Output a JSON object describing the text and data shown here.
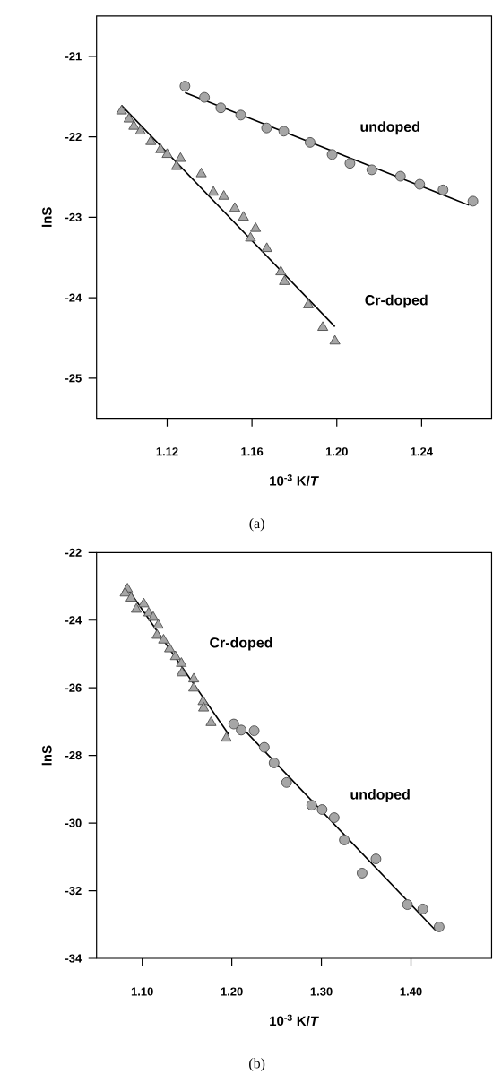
{
  "chart_data": [
    {
      "type": "scatter",
      "xlabel": "10$^{-3}$ K/*T*",
      "ylabel": "lnS",
      "annotations": [
        "(a)"
      ],
      "xlim": [
        1.0867,
        1.273
      ],
      "ylim": [
        -25.5,
        -20.5
      ],
      "xticks": [
        1.12,
        1.16,
        {
          "value": 1.2,
          "label": "1.20"
        },
        1.24
      ],
      "yticks": [
        -25,
        -24,
        -23,
        -22,
        -21
      ],
      "series": [
        {
          "name": "undoped",
          "marker": "circle",
          "color": "#a6a6a6",
          "x": [
            1.1284,
            1.1376,
            1.1453,
            1.1547,
            1.1669,
            1.175,
            1.1874,
            1.1978,
            1.2062,
            1.2165,
            1.23,
            1.2391,
            1.2501,
            1.2642
          ],
          "values": [
            -21.37,
            -21.51,
            -21.64,
            -21.73,
            -21.89,
            -21.93,
            -22.07,
            -22.22,
            -22.33,
            -22.41,
            -22.49,
            -22.59,
            -22.66,
            -22.8
          ]
        },
        {
          "type": "line",
          "color": "#000000",
          "x": [
            1.1284,
            1.2624
          ],
          "values": [
            -21.45,
            -22.85
          ]
        },
        {
          "name": "Cr-doped",
          "marker": "triangle",
          "color": "#a6a6a6",
          "x": [
            1.0985,
            1.102,
            1.1043,
            1.1074,
            1.1123,
            1.1169,
            1.12,
            1.1263,
            1.1244,
            1.1361,
            1.1418,
            1.1467,
            1.1519,
            1.156,
            1.1617,
            1.1593,
            1.167,
            1.1736,
            1.1753,
            1.1866,
            1.1934,
            1.1991
          ],
          "values": [
            -21.68,
            -21.78,
            -21.87,
            -21.93,
            -22.06,
            -22.16,
            -22.22,
            -22.27,
            -22.37,
            -22.46,
            -22.69,
            -22.74,
            -22.89,
            -23.0,
            -23.14,
            -23.26,
            -23.39,
            -23.68,
            -23.8,
            -24.09,
            -24.37,
            -24.54
          ]
        },
        {
          "type": "line",
          "color": "#000000",
          "x": [
            1.0985,
            1.1991
          ],
          "values": [
            -21.61,
            -24.36
          ]
        }
      ]
    },
    {
      "type": "scatter",
      "xlabel": "10$^{-3}$ K/*T*",
      "ylabel": "lnS",
      "annotations": [
        "(b)"
      ],
      "xlim": [
        1.049,
        1.49
      ],
      "ylim": [
        -34,
        -22
      ],
      "xticks": [
        {
          "value": 1.1,
          "label": "1.10"
        },
        {
          "value": 1.2,
          "label": "1.20"
        },
        {
          "value": 1.3,
          "label": "1.30"
        },
        {
          "value": 1.4,
          "label": "1.40"
        }
      ],
      "yticks": [
        -34,
        -32,
        -30,
        -28,
        -26,
        -24,
        -22
      ],
      "series": [
        {
          "name": "Cr-doped",
          "marker": "triangle",
          "color": "#a6a6a6",
          "x": [
            1.0835,
            1.0809,
            1.0875,
            1.0934,
            1.1017,
            1.1073,
            1.1123,
            1.1179,
            1.1166,
            1.1238,
            1.1305,
            1.1371,
            1.1437,
            1.1443,
            1.1575,
            1.1575,
            1.1679,
            1.1685,
            1.1768,
            1.1939
          ],
          "values": [
            -23.08,
            -23.2,
            -23.35,
            -23.68,
            -23.52,
            -23.79,
            -23.92,
            -24.15,
            -24.45,
            -24.59,
            -24.85,
            -25.08,
            -25.28,
            -25.56,
            -25.74,
            -26.01,
            -26.41,
            -26.6,
            -27.03,
            -27.49
          ]
        },
        {
          "type": "line",
          "color": "#000000",
          "x": [
            1.0841,
            1.1966
          ],
          "values": [
            -23.08,
            -27.38
          ]
        },
        {
          "name": "undoped",
          "marker": "circle",
          "color": "#a6a6a6",
          "x": [
            1.2022,
            1.2105,
            1.225,
            1.2363,
            1.2472,
            1.2611,
            1.2892,
            1.3008,
            1.3143,
            1.3256,
            1.3454,
            1.3609,
            1.396,
            1.4132,
            1.4314
          ],
          "values": [
            -27.07,
            -27.25,
            -27.27,
            -27.76,
            -28.22,
            -28.8,
            -29.47,
            -29.6,
            -29.84,
            -30.5,
            -31.48,
            -31.06,
            -32.41,
            -32.54,
            -33.07
          ]
        },
        {
          "type": "line",
          "color": "#000000",
          "x": [
            1.2155,
            1.4281
          ],
          "values": [
            -27.29,
            -33.19
          ]
        }
      ]
    }
  ]
}
